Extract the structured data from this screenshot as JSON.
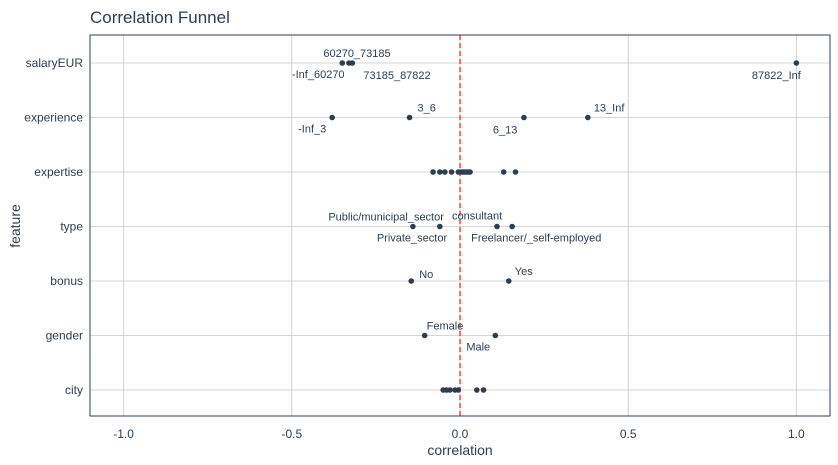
{
  "chart_data": {
    "type": "scatter",
    "title": "Correlation Funnel",
    "xlabel": "correlation",
    "ylabel": "feature",
    "xlim": [
      -1.1,
      1.1
    ],
    "x_ticks": [
      "-1.0",
      "-0.5",
      "0.0",
      "0.5",
      "1.0"
    ],
    "x_tick_values": [
      -1.0,
      -0.5,
      0.0,
      0.5,
      1.0
    ],
    "categories": [
      "salaryEUR",
      "experience",
      "expertise",
      "type",
      "bonus",
      "gender",
      "city"
    ],
    "reference_line": {
      "x": 0,
      "style": "dashed"
    },
    "grid": true,
    "colors": {
      "points": "#2c3e50",
      "reference": "#e31a1c",
      "panel_border": "#2c3e50"
    },
    "points": [
      {
        "feature": "salaryEUR",
        "x": -0.35,
        "label": "-Inf_60270"
      },
      {
        "feature": "salaryEUR",
        "x": -0.33,
        "label": "60270_73185"
      },
      {
        "feature": "salaryEUR",
        "x": -0.32,
        "label": "73185_87822"
      },
      {
        "feature": "salaryEUR",
        "x": 1.0,
        "label": "87822_Inf"
      },
      {
        "feature": "experience",
        "x": -0.38,
        "label": "-Inf_3"
      },
      {
        "feature": "experience",
        "x": -0.15,
        "label": "3_6"
      },
      {
        "feature": "experience",
        "x": 0.19,
        "label": "6_13"
      },
      {
        "feature": "experience",
        "x": 0.38,
        "label": "13_Inf"
      },
      {
        "feature": "expertise",
        "x": -0.08,
        "label": ""
      },
      {
        "feature": "expertise",
        "x": -0.06,
        "label": ""
      },
      {
        "feature": "expertise",
        "x": -0.045,
        "label": ""
      },
      {
        "feature": "expertise",
        "x": -0.025,
        "label": ""
      },
      {
        "feature": "expertise",
        "x": -0.005,
        "label": ""
      },
      {
        "feature": "expertise",
        "x": 0.005,
        "label": ""
      },
      {
        "feature": "expertise",
        "x": 0.01,
        "label": ""
      },
      {
        "feature": "expertise",
        "x": 0.015,
        "label": ""
      },
      {
        "feature": "expertise",
        "x": 0.02,
        "label": ""
      },
      {
        "feature": "expertise",
        "x": 0.025,
        "label": ""
      },
      {
        "feature": "expertise",
        "x": 0.03,
        "label": ""
      },
      {
        "feature": "expertise",
        "x": 0.13,
        "label": ""
      },
      {
        "feature": "expertise",
        "x": 0.165,
        "label": ""
      },
      {
        "feature": "type",
        "x": -0.14,
        "label": "Public/municipal_sector"
      },
      {
        "feature": "type",
        "x": -0.06,
        "label": "Private_sector"
      },
      {
        "feature": "type",
        "x": 0.11,
        "label": "consultant"
      },
      {
        "feature": "type",
        "x": 0.155,
        "label": "Freelancer/_self-employed"
      },
      {
        "feature": "bonus",
        "x": -0.145,
        "label": "No"
      },
      {
        "feature": "bonus",
        "x": 0.145,
        "label": "Yes"
      },
      {
        "feature": "gender",
        "x": -0.105,
        "label": "Female"
      },
      {
        "feature": "gender",
        "x": 0.105,
        "label": "Male"
      },
      {
        "feature": "city",
        "x": -0.05,
        "label": ""
      },
      {
        "feature": "city",
        "x": -0.04,
        "label": ""
      },
      {
        "feature": "city",
        "x": -0.03,
        "label": ""
      },
      {
        "feature": "city",
        "x": -0.015,
        "label": ""
      },
      {
        "feature": "city",
        "x": -0.005,
        "label": ""
      },
      {
        "feature": "city",
        "x": 0.05,
        "label": ""
      },
      {
        "feature": "city",
        "x": 0.07,
        "label": ""
      }
    ]
  }
}
